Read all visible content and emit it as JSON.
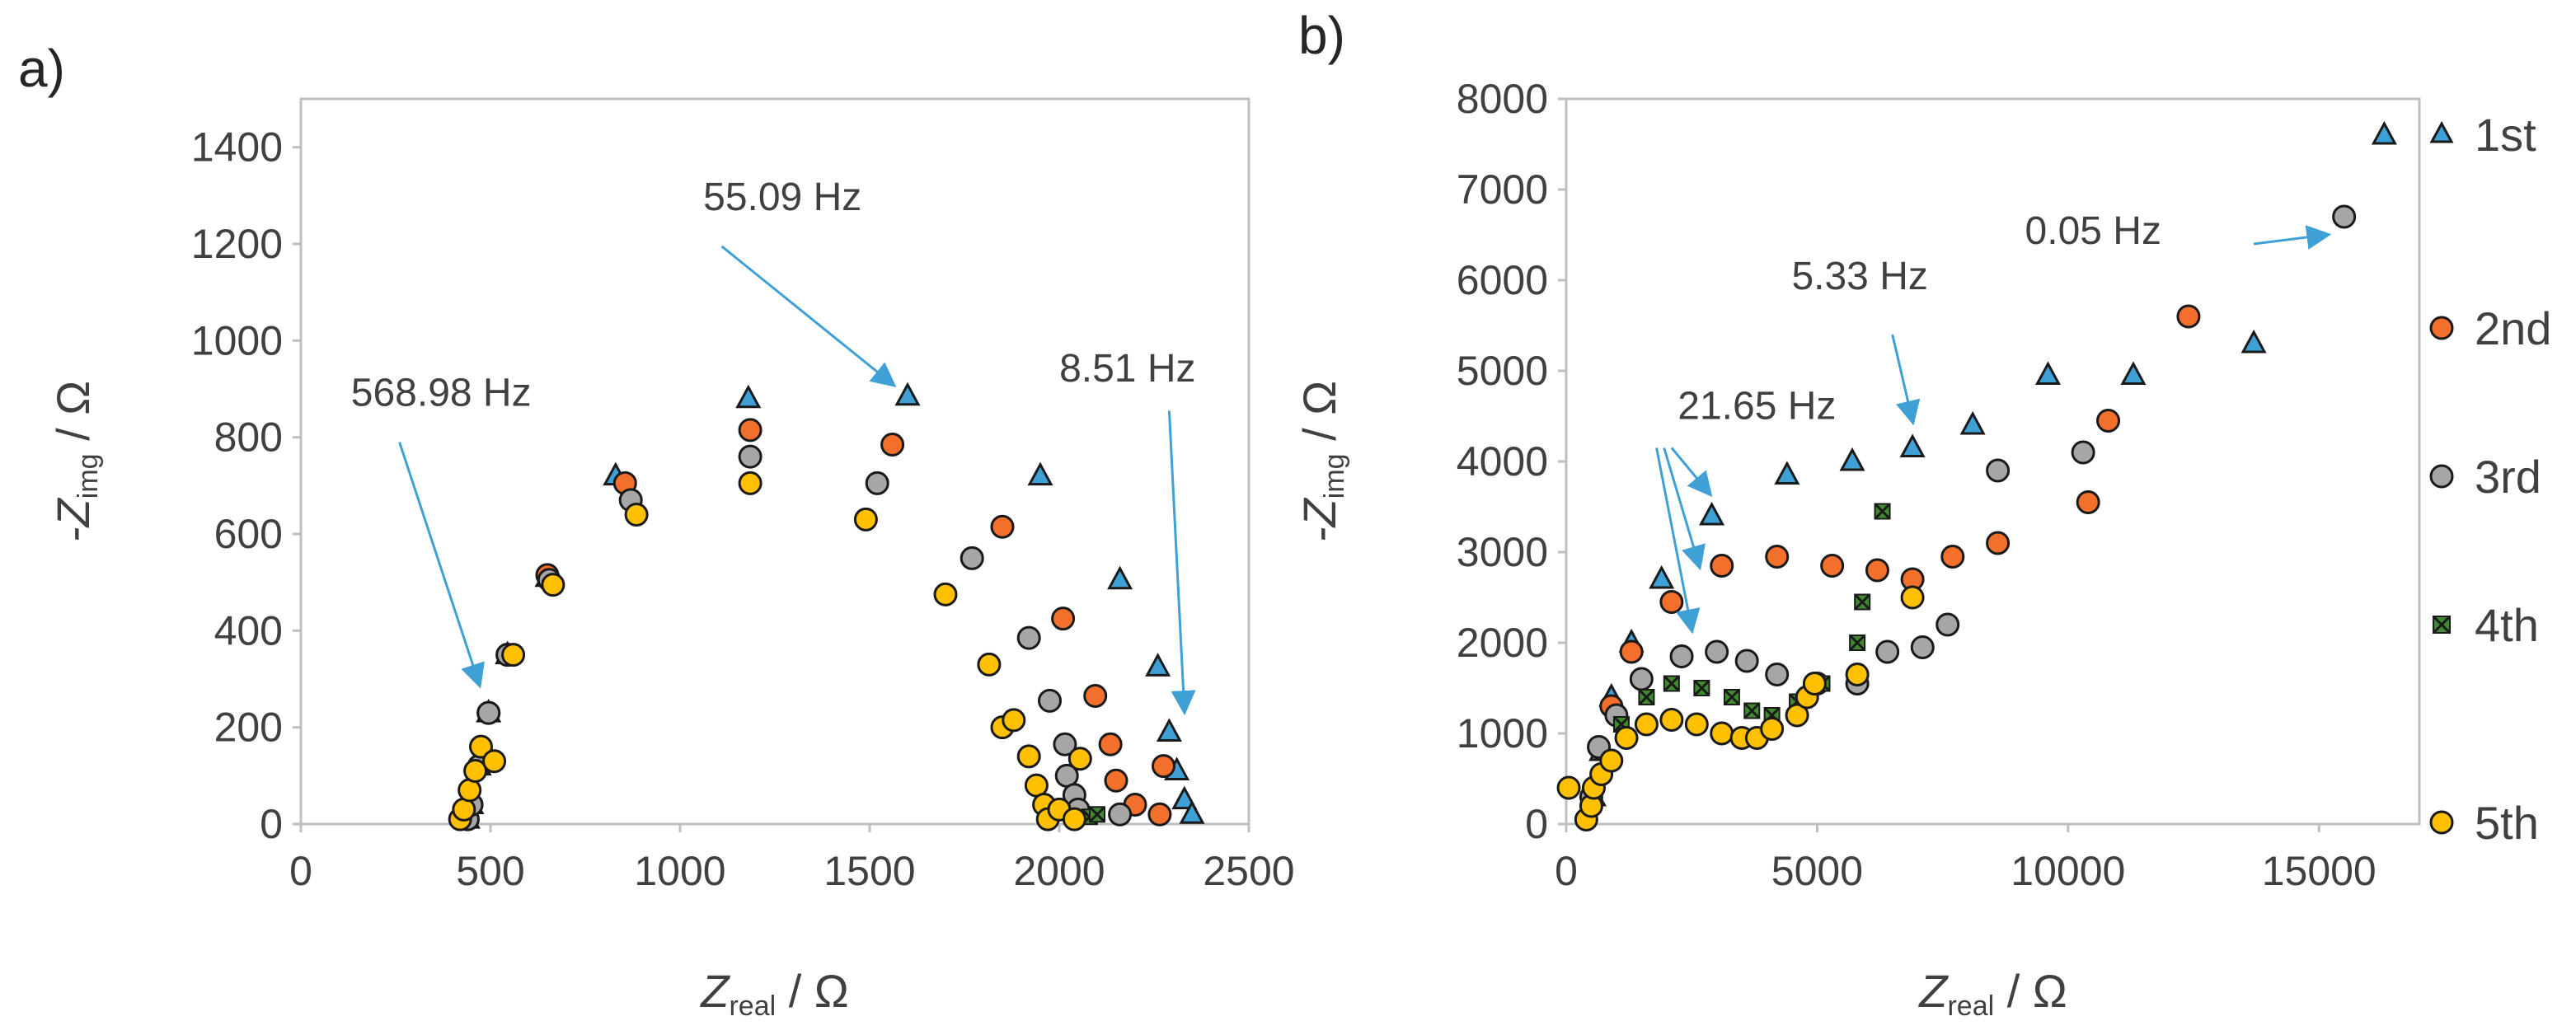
{
  "figure_labels": [
    "a)",
    "b)"
  ],
  "legend": {
    "entries": [
      "1st",
      "2nd",
      "3rd",
      "4th",
      "5th"
    ],
    "placement": "right of panel b"
  },
  "series_styles": {
    "1st": {
      "marker": "triangle",
      "fill": "#3fa0d6"
    },
    "2nd": {
      "marker": "circle",
      "fill": "#f26f2c"
    },
    "3rd": {
      "marker": "circle",
      "fill": "#a6a6a6"
    },
    "4th": {
      "marker": "x-box",
      "fill": "#3f8a2f"
    },
    "5th": {
      "marker": "circle",
      "fill": "#ffc000"
    }
  },
  "arrow_color": "#3fa0d6",
  "chart_data": [
    {
      "panel": "a)",
      "type": "scatter",
      "xlabel": {
        "main": "Z",
        "sub": "real",
        "unit": " / Ω"
      },
      "ylabel": {
        "prefix": "-Z",
        "sub": "img",
        "unit": " / Ω"
      },
      "xlim": [
        0,
        2500
      ],
      "ylim": [
        0,
        1500
      ],
      "xticks": [
        0,
        500,
        1000,
        1500,
        2000,
        2500
      ],
      "yticks": [
        0,
        200,
        400,
        600,
        800,
        1000,
        1200,
        1400
      ],
      "series": [
        {
          "name": "1st",
          "points": [
            [
              440,
              10
            ],
            [
              450,
              40
            ],
            [
              470,
              120
            ],
            [
              495,
              230
            ],
            [
              545,
              350
            ],
            [
              650,
              510
            ],
            [
              830,
              720
            ],
            [
              1180,
              880
            ],
            [
              1600,
              885
            ],
            [
              1950,
              720
            ],
            [
              2160,
              505
            ],
            [
              2260,
              325
            ],
            [
              2290,
              190
            ],
            [
              2310,
              110
            ],
            [
              2330,
              50
            ],
            [
              2350,
              20
            ]
          ]
        },
        {
          "name": "2nd",
          "points": [
            [
              440,
              10
            ],
            [
              450,
              40
            ],
            [
              470,
              120
            ],
            [
              495,
              230
            ],
            [
              545,
              350
            ],
            [
              650,
              515
            ],
            [
              855,
              705
            ],
            [
              1185,
              815
            ],
            [
              1560,
              785
            ],
            [
              1850,
              615
            ],
            [
              2010,
              425
            ],
            [
              2095,
              265
            ],
            [
              2135,
              165
            ],
            [
              2150,
              90
            ],
            [
              2200,
              40
            ],
            [
              2265,
              20
            ],
            [
              2275,
              120
            ]
          ]
        },
        {
          "name": "3rd",
          "points": [
            [
              440,
              10
            ],
            [
              450,
              40
            ],
            [
              470,
              120
            ],
            [
              495,
              230
            ],
            [
              545,
              350
            ],
            [
              655,
              505
            ],
            [
              870,
              670
            ],
            [
              1185,
              760
            ],
            [
              1520,
              705
            ],
            [
              1770,
              550
            ],
            [
              1920,
              385
            ],
            [
              1975,
              255
            ],
            [
              2015,
              165
            ],
            [
              2020,
              100
            ],
            [
              2040,
              60
            ],
            [
              2050,
              30
            ],
            [
              2160,
              20
            ]
          ]
        },
        {
          "name": "4th",
          "points": [
            [
              2080,
              15
            ],
            [
              2100,
              20
            ]
          ]
        },
        {
          "name": "5th",
          "points": [
            [
              420,
              10
            ],
            [
              430,
              30
            ],
            [
              445,
              70
            ],
            [
              460,
              110
            ],
            [
              475,
              160
            ],
            [
              510,
              130
            ],
            [
              560,
              350
            ],
            [
              665,
              495
            ],
            [
              885,
              640
            ],
            [
              1185,
              705
            ],
            [
              1490,
              630
            ],
            [
              1700,
              475
            ],
            [
              1815,
              330
            ],
            [
              1850,
              200
            ],
            [
              1880,
              215
            ],
            [
              1920,
              140
            ],
            [
              1940,
              80
            ],
            [
              1960,
              40
            ],
            [
              1970,
              10
            ],
            [
              2000,
              30
            ],
            [
              2040,
              10
            ],
            [
              2055,
              135
            ]
          ]
        }
      ],
      "annotations": [
        {
          "text": "568.98 Hz",
          "label_at": [
            370,
            865
          ],
          "arrow_from": [
            260,
            790
          ],
          "arrow_to": [
            470,
            290
          ]
        },
        {
          "text": "55.09 Hz",
          "label_at": [
            1270,
            1270
          ],
          "arrow_from": [
            1110,
            1195
          ],
          "arrow_to": [
            1560,
            910
          ]
        },
        {
          "text": "8.51 Hz",
          "label_at": [
            2180,
            915
          ],
          "arrow_from": [
            2290,
            855
          ],
          "arrow_to": [
            2330,
            235
          ]
        }
      ]
    },
    {
      "panel": "b)",
      "type": "scatter",
      "xlabel": {
        "main": "Z",
        "sub": "real",
        "unit": " / Ω"
      },
      "ylabel": {
        "prefix": "-Z",
        "sub": "img",
        "unit": " / Ω"
      },
      "xlim": [
        0,
        17000
      ],
      "ylim": [
        0,
        8000
      ],
      "xticks": [
        0,
        5000,
        10000,
        15000
      ],
      "yticks": [
        0,
        1000,
        2000,
        3000,
        4000,
        5000,
        6000,
        7000,
        8000
      ],
      "series": [
        {
          "name": "1st",
          "points": [
            [
              550,
              300
            ],
            [
              700,
              800
            ],
            [
              900,
              1400
            ],
            [
              1300,
              2000
            ],
            [
              1900,
              2700
            ],
            [
              2900,
              3400
            ],
            [
              4400,
              3850
            ],
            [
              5700,
              4000
            ],
            [
              6900,
              4150
            ],
            [
              8100,
              4400
            ],
            [
              9600,
              4950
            ],
            [
              11300,
              4950
            ],
            [
              13700,
              5300
            ],
            [
              16300,
              7600
            ]
          ]
        },
        {
          "name": "2nd",
          "points": [
            [
              900,
              1300
            ],
            [
              1300,
              1900
            ],
            [
              2100,
              2450
            ],
            [
              3100,
              2850
            ],
            [
              4200,
              2950
            ],
            [
              5300,
              2850
            ],
            [
              6200,
              2800
            ],
            [
              6900,
              2700
            ],
            [
              7700,
              2950
            ],
            [
              8600,
              3100
            ],
            [
              10400,
              3550
            ],
            [
              10800,
              4450
            ],
            [
              12400,
              5600
            ]
          ]
        },
        {
          "name": "3rd",
          "points": [
            [
              500,
              300
            ],
            [
              650,
              850
            ],
            [
              1000,
              1200
            ],
            [
              1500,
              1600
            ],
            [
              2300,
              1850
            ],
            [
              3000,
              1900
            ],
            [
              3600,
              1800
            ],
            [
              4200,
              1650
            ],
            [
              5000,
              1550
            ],
            [
              5800,
              1550
            ],
            [
              6400,
              1900
            ],
            [
              7100,
              1950
            ],
            [
              7600,
              2200
            ],
            [
              8600,
              3900
            ],
            [
              10300,
              4100
            ],
            [
              15500,
              6700
            ]
          ]
        },
        {
          "name": "4th",
          "points": [
            [
              1100,
              1100
            ],
            [
              1600,
              1400
            ],
            [
              2100,
              1550
            ],
            [
              2700,
              1500
            ],
            [
              3300,
              1400
            ],
            [
              3700,
              1250
            ],
            [
              4100,
              1200
            ],
            [
              4600,
              1350
            ],
            [
              5100,
              1550
            ],
            [
              5800,
              2000
            ],
            [
              5900,
              2450
            ],
            [
              6300,
              3450
            ]
          ]
        },
        {
          "name": "5th",
          "points": [
            [
              50,
              400
            ],
            [
              400,
              50
            ],
            [
              500,
              200
            ],
            [
              550,
              400
            ],
            [
              700,
              550
            ],
            [
              900,
              700
            ],
            [
              1200,
              950
            ],
            [
              1600,
              1100
            ],
            [
              2100,
              1150
            ],
            [
              2600,
              1100
            ],
            [
              3100,
              1000
            ],
            [
              3500,
              950
            ],
            [
              3800,
              950
            ],
            [
              4100,
              1050
            ],
            [
              4600,
              1200
            ],
            [
              4800,
              1400
            ],
            [
              4950,
              1550
            ],
            [
              5800,
              1650
            ],
            [
              6900,
              2500
            ]
          ]
        }
      ],
      "annotations": [
        {
          "text": "0.05 Hz",
          "label_at": [
            10500,
            6400
          ],
          "arrow_from": [
            13700,
            6400
          ],
          "arrow_to": [
            15150,
            6500
          ]
        },
        {
          "text": "5.33 Hz",
          "label_at": [
            5850,
            5900
          ],
          "arrow_from": [
            6500,
            5400
          ],
          "arrow_to": [
            6900,
            4450
          ]
        },
        {
          "text": "21.65 Hz",
          "label_at": [
            3800,
            4470
          ],
          "arrow_from": [
            2100,
            4150
          ],
          "arrow_to": [
            2850,
            3650
          ],
          "extra_arrows": [
            {
              "from": [
                1950,
                4150
              ],
              "to": [
                2650,
                2850
              ]
            },
            {
              "from": [
                1800,
                4150
              ],
              "to": [
                2500,
                2150
              ]
            }
          ]
        }
      ]
    }
  ]
}
